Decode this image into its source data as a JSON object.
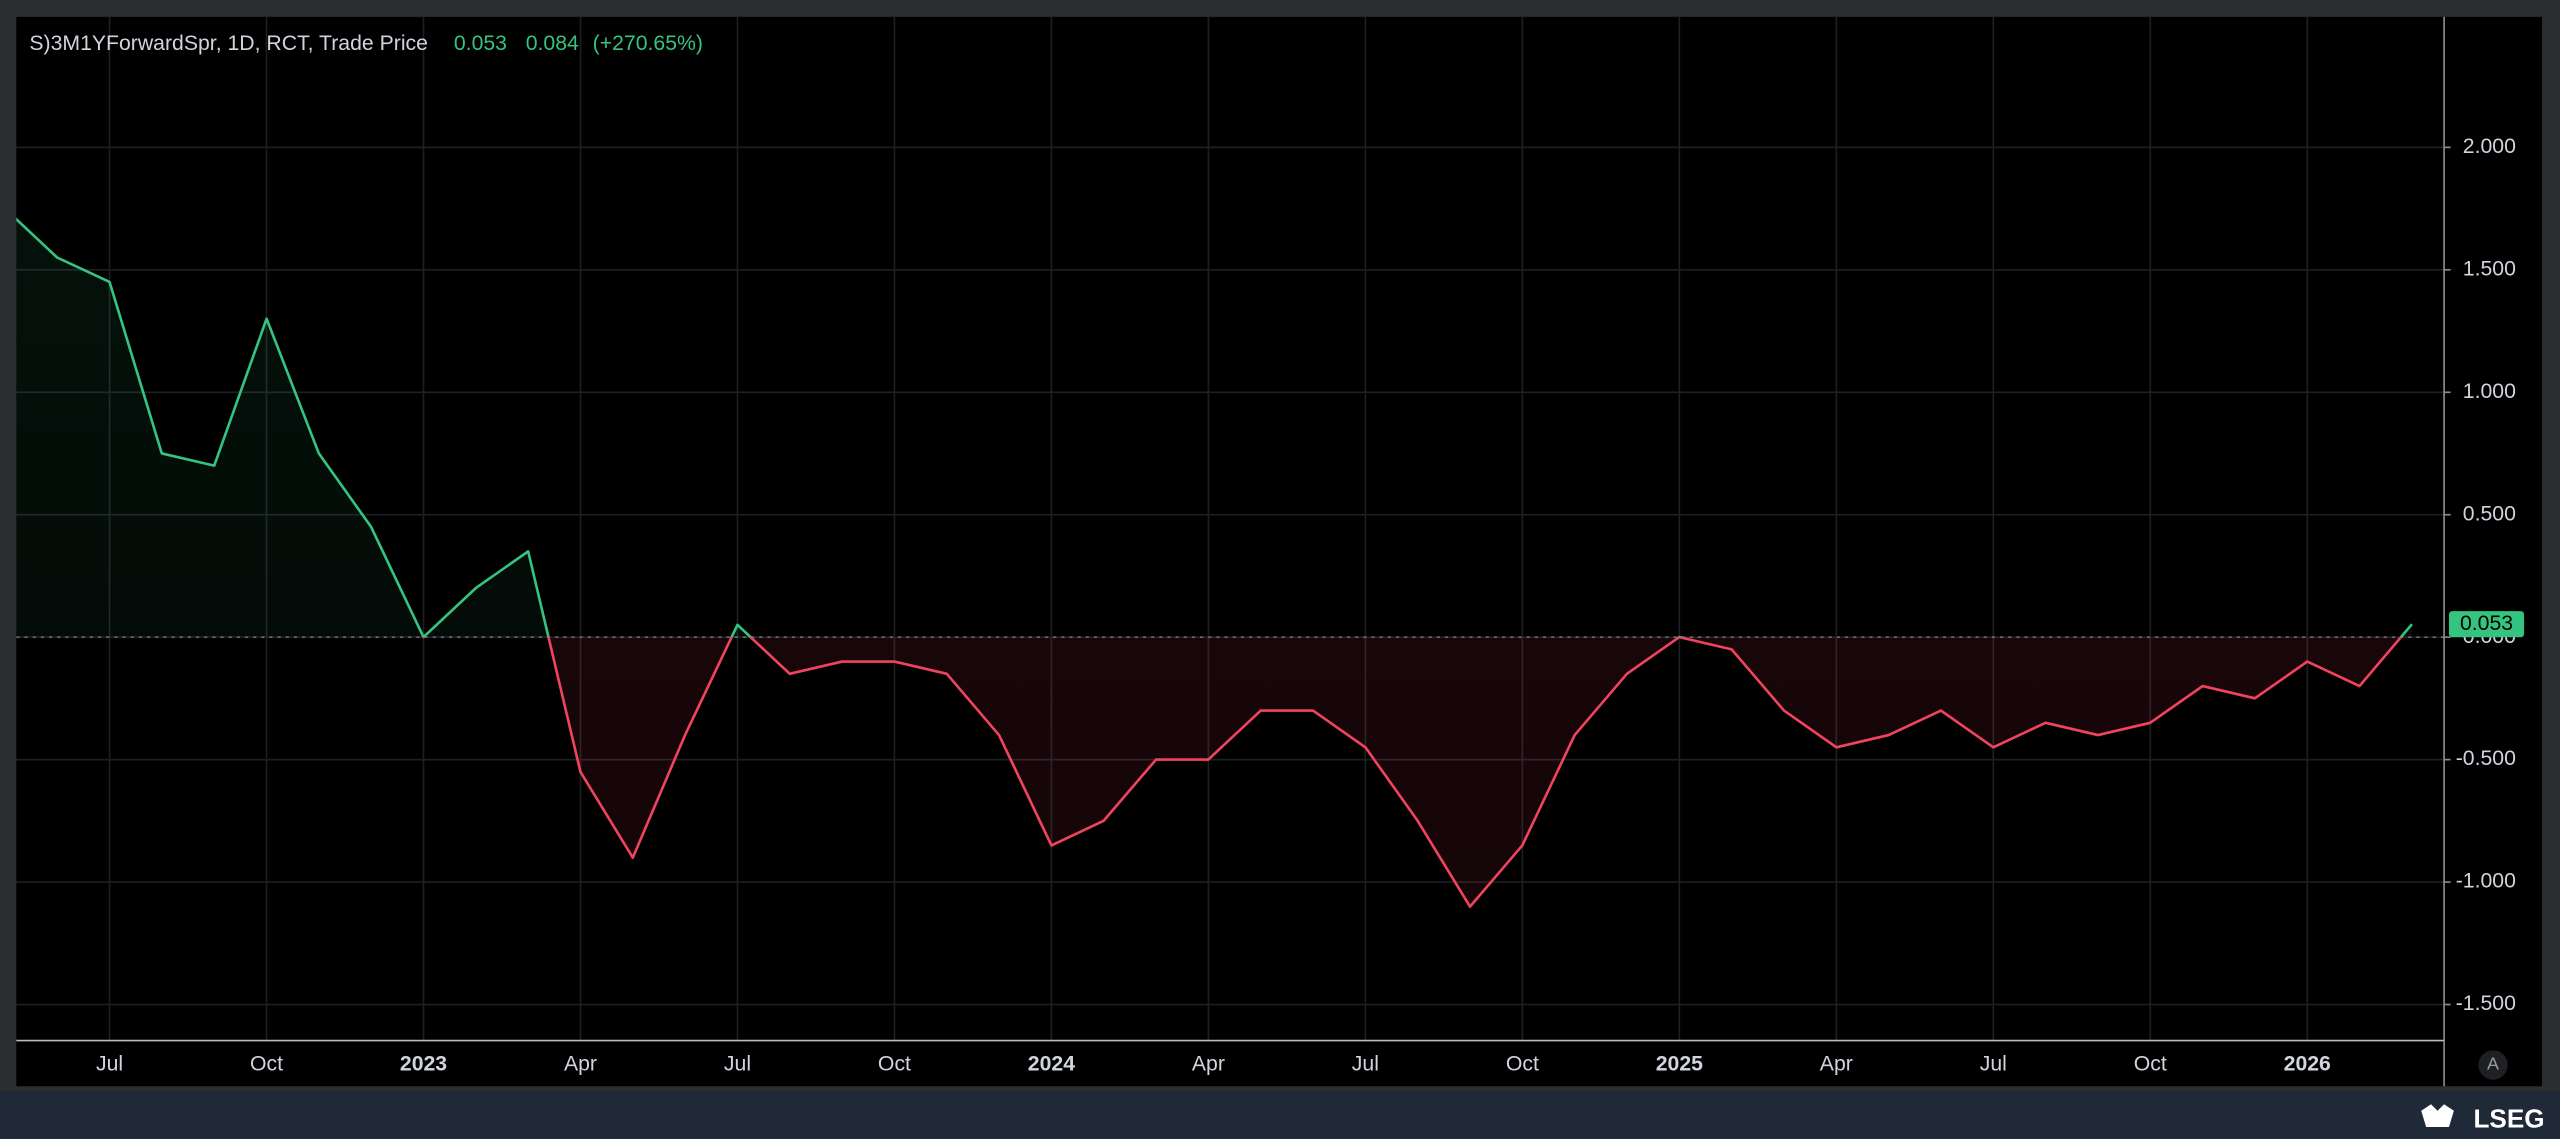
{
  "header": {
    "symbol": "S)3M1YForwardSpr, 1D, RCT, Trade Price",
    "last": 0.053,
    "change": 0.084,
    "change_pct": "(+270.65%)"
  },
  "brand": "LSEG",
  "scale_button": "A",
  "chart_data": {
    "type": "line",
    "x": [
      "2022-05",
      "2022-06",
      "2022-07",
      "2022-08",
      "2022-09",
      "2022-10",
      "2022-11",
      "2022-12",
      "2023-01",
      "2023-02",
      "2023-03",
      "2023-04",
      "2023-05",
      "2023-06",
      "2023-07",
      "2023-08",
      "2023-09",
      "2023-10",
      "2023-11",
      "2023-12",
      "2024-01",
      "2024-02",
      "2024-03",
      "2024-04",
      "2024-05",
      "2024-06",
      "2024-07",
      "2024-08",
      "2024-09",
      "2024-10",
      "2024-11",
      "2024-12",
      "2025-01",
      "2025-02",
      "2025-03",
      "2025-04",
      "2025-05",
      "2025-06",
      "2025-07",
      "2025-08",
      "2025-09",
      "2025-10",
      "2025-11",
      "2025-12",
      "2026-01",
      "2026-02",
      "2026-03"
    ],
    "values": [
      1.75,
      1.55,
      1.45,
      0.75,
      0.7,
      1.3,
      0.75,
      0.45,
      0.0,
      0.2,
      0.35,
      -0.55,
      -0.9,
      -0.4,
      0.05,
      -0.15,
      -0.1,
      -0.1,
      -0.15,
      -0.4,
      -0.85,
      -0.75,
      -0.5,
      -0.5,
      -0.3,
      -0.3,
      -0.45,
      -0.75,
      -1.1,
      -0.85,
      -0.4,
      -0.15,
      0.0,
      -0.05,
      -0.3,
      -0.45,
      -0.4,
      -0.3,
      -0.45,
      -0.35,
      -0.4,
      -0.35,
      -0.2,
      -0.25,
      -0.1,
      -0.2,
      0.053
    ],
    "baseline": 0,
    "color_above": "#35c47f",
    "color_below": "#f0435d",
    "xlim": [
      "2022-05",
      "2026-04"
    ],
    "xticks": [
      {
        "value": "2022-07",
        "label": "Jul"
      },
      {
        "value": "2022-10",
        "label": "Oct"
      },
      {
        "value": "2023-01",
        "label": "2023"
      },
      {
        "value": "2023-04",
        "label": "Apr"
      },
      {
        "value": "2023-07",
        "label": "Jul"
      },
      {
        "value": "2023-10",
        "label": "Oct"
      },
      {
        "value": "2024-01",
        "label": "2024"
      },
      {
        "value": "2024-04",
        "label": "Apr"
      },
      {
        "value": "2024-07",
        "label": "Jul"
      },
      {
        "value": "2024-10",
        "label": "Oct"
      },
      {
        "value": "2025-01",
        "label": "2025"
      },
      {
        "value": "2025-04",
        "label": "Apr"
      },
      {
        "value": "2025-07",
        "label": "Jul"
      },
      {
        "value": "2025-10",
        "label": "Oct"
      },
      {
        "value": "2026-01",
        "label": "2026"
      }
    ],
    "ylim": [
      -1.647,
      2.533
    ],
    "yticks": [
      {
        "value": -1.5,
        "label": "-1.500"
      },
      {
        "value": -1,
        "label": "-1.000"
      },
      {
        "value": -0.5,
        "label": "-0.500"
      },
      {
        "value": 0,
        "label": "0.000"
      },
      {
        "value": 0.5,
        "label": "0.500"
      },
      {
        "value": 1,
        "label": "1.000"
      },
      {
        "value": 1.5,
        "label": "1.500"
      },
      {
        "value": 2,
        "label": "2.000"
      }
    ],
    "grid": true
  }
}
